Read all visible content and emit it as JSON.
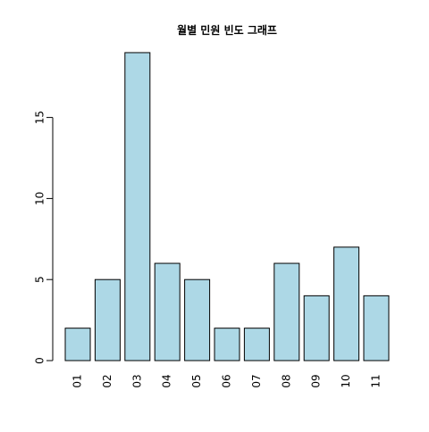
{
  "chart_data": {
    "type": "bar",
    "title": "월별 민원 빈도 그래프",
    "xlabel": "",
    "ylabel": "",
    "categories": [
      "01",
      "02",
      "03",
      "04",
      "05",
      "06",
      "07",
      "08",
      "09",
      "10",
      "11"
    ],
    "values": [
      2,
      5,
      19,
      6,
      5,
      2,
      2,
      6,
      4,
      7,
      4
    ],
    "y_ticks": [
      0,
      5,
      10,
      15
    ],
    "ylim": [
      0,
      19
    ],
    "grid": false,
    "legend": "none",
    "x_label_orientation": "vertical",
    "colors": {
      "bar_fill": "#add8e6",
      "bar_stroke": "#000000",
      "axis": "#000000",
      "text": "#000000"
    }
  }
}
